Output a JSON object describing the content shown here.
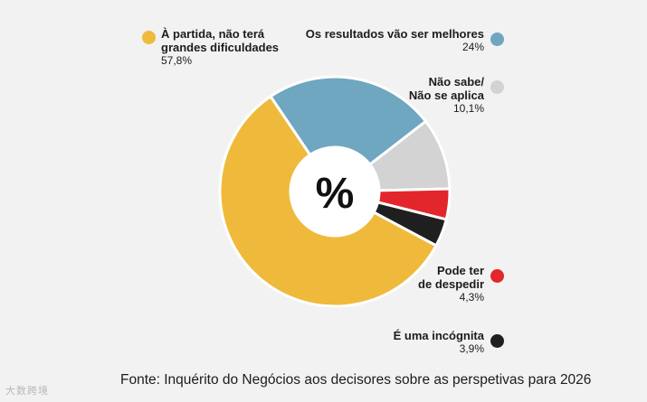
{
  "chart_data": {
    "type": "pie",
    "style": "donut",
    "center_label": "%",
    "slices": [
      {
        "name": "Os resultados vão ser melhores",
        "value": 24,
        "display": "24%",
        "color": "#6ea7bf"
      },
      {
        "name": "Não sabe/\nNão se aplica",
        "value": 10.1,
        "display": "10,1%",
        "color": "#d3d3d3"
      },
      {
        "name": "Pode ter\nde despedir",
        "value": 4.3,
        "display": "4,3%",
        "color": "#e3262b"
      },
      {
        "name": "É uma incógnita",
        "value": 3.9,
        "display": "3,9%",
        "color": "#1f1f1f"
      },
      {
        "name": "À partida, não terá\ngrandes dificuldades",
        "value": 57.8,
        "display": "57,8%",
        "color": "#efba3b"
      }
    ]
  },
  "source": "Fonte: Inquérito do Negócios aos decisores sobre as perspetivas para 2026",
  "watermark": "大数跨境"
}
